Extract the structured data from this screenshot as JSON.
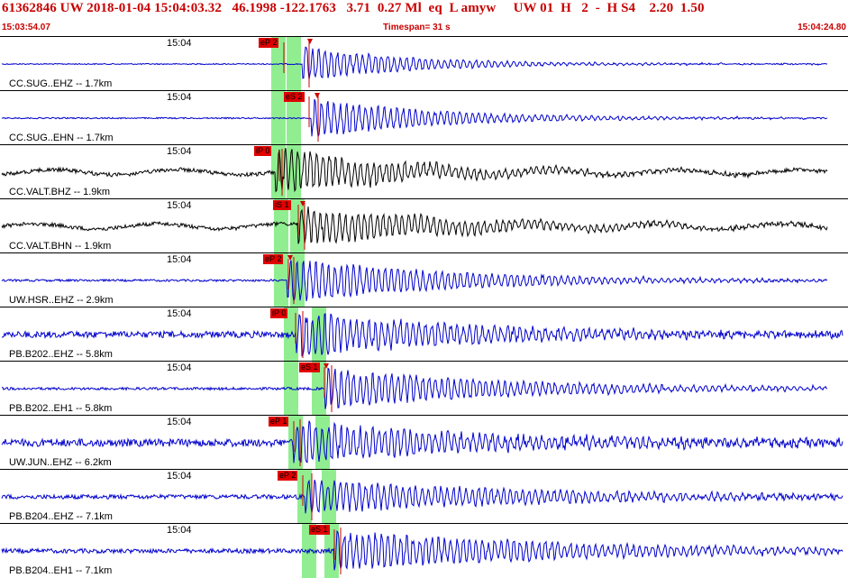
{
  "header": {
    "summary": "61362846 UW 2018-01-04 15:04:03.32   46.1998 -122.1763   3.71  0.27 Ml  eq  L amyw     UW 01  H   2  -  H S4    2.20  1.50",
    "start_time": "15:03:54.07",
    "timespan": "Timespan=  31 s",
    "end_time": "15:04:24.80"
  },
  "traces": [
    {
      "tick": "15:04",
      "label": "CC.SUG..EHZ -- 1.7km",
      "color": "#0000cc",
      "amp": 0.35,
      "noise": 0.05,
      "pick": "eP 2",
      "s_pick": ""
    },
    {
      "tick": "15:04",
      "label": "CC.SUG..EHN -- 1.7km",
      "color": "#0000cc",
      "amp": 0.4,
      "noise": 0.06,
      "pick": "",
      "s_pick": "eS 2"
    },
    {
      "tick": "15:04",
      "label": "CC.VALT.BHZ -- 1.9km",
      "color": "#000000",
      "amp": 0.45,
      "noise": 0.18,
      "pick": "iP 0",
      "s_pick": ""
    },
    {
      "tick": "15:04",
      "label": "CC.VALT.BHN -- 1.9km",
      "color": "#000000",
      "amp": 0.4,
      "noise": 0.18,
      "pick": "iS 1",
      "s_pick": ""
    },
    {
      "tick": "15:04",
      "label": "UW.HSR..EHZ -- 2.9km",
      "color": "#0000cc",
      "amp": 0.45,
      "noise": 0.1,
      "pick": "eP 2",
      "s_pick": ""
    },
    {
      "tick": "15:04",
      "label": "PB.B202..EHZ -- 5.8km",
      "color": "#0000cc",
      "amp": 0.45,
      "noise": 0.3,
      "pick": "iP 0",
      "s_pick": ""
    },
    {
      "tick": "15:04",
      "label": "PB.B202..EH1 -- 5.8km",
      "color": "#0000cc",
      "amp": 0.4,
      "noise": 0.12,
      "pick": "",
      "s_pick": "eS 1"
    },
    {
      "tick": "15:04",
      "label": "UW.JUN..EHZ -- 6.2km",
      "color": "#0000cc",
      "amp": 0.4,
      "noise": 0.35,
      "pick": "eP 1",
      "s_pick": ""
    },
    {
      "tick": "15:04",
      "label": "PB.B204..EHZ -- 7.1km",
      "color": "#0000cc",
      "amp": 0.35,
      "noise": 0.2,
      "pick": "eP 2",
      "s_pick": ""
    },
    {
      "tick": "15:04",
      "label": "PB.B204..EH1 -- 7.1km",
      "color": "#0000cc",
      "amp": 0.4,
      "noise": 0.2,
      "pick": "",
      "s_pick": "eS 1"
    }
  ],
  "colors": {
    "header_text": "#c80000",
    "pick_flag": "#e00000",
    "pick_window": "#90ee90",
    "trace_blue": "#0000cc",
    "trace_black": "#000000"
  },
  "icons": {
    "pick_marker": "triangle-down-icon",
    "arrival_marker": "triangle-up-icon"
  }
}
